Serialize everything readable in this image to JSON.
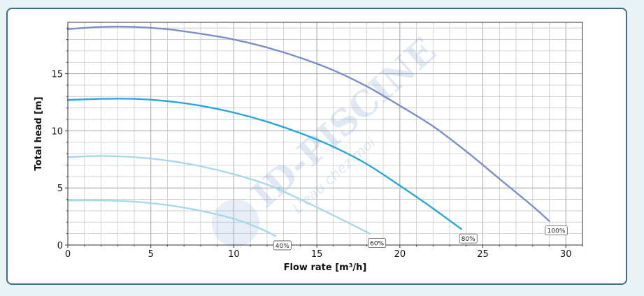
{
  "chart_data": {
    "type": "line",
    "title": "",
    "xlabel": "Flow rate [m³/h]",
    "ylabel": "Total head [m]",
    "xlim": [
      0,
      31
    ],
    "ylim": [
      0,
      19.5
    ],
    "xticks": [
      0,
      5,
      10,
      15,
      20,
      25,
      30
    ],
    "yticks": [
      0,
      5,
      10,
      15
    ],
    "grid": true,
    "series": [
      {
        "name": "100%",
        "color": "#7a8fc8",
        "x": [
          0,
          2,
          4,
          6,
          8,
          10,
          12,
          14,
          16,
          18,
          20,
          22,
          24,
          26,
          28,
          29
        ],
        "y": [
          18.9,
          19.1,
          19.1,
          18.9,
          18.5,
          18.0,
          17.3,
          16.4,
          15.3,
          13.9,
          12.2,
          10.4,
          8.2,
          5.8,
          3.4,
          2.1
        ]
      },
      {
        "name": "80%",
        "color": "#27a8dc",
        "x": [
          0,
          2,
          4,
          6,
          8,
          10,
          12,
          14,
          16,
          18,
          20,
          22,
          23.7
        ],
        "y": [
          12.7,
          12.8,
          12.8,
          12.6,
          12.2,
          11.6,
          10.8,
          9.8,
          8.6,
          7.1,
          5.2,
          3.2,
          1.4
        ]
      },
      {
        "name": "60%",
        "color": "#a8d8ea",
        "x": [
          0,
          2,
          4,
          6,
          8,
          10,
          12,
          14,
          16,
          18.2
        ],
        "y": [
          7.7,
          7.8,
          7.7,
          7.4,
          6.9,
          6.2,
          5.3,
          4.0,
          2.6,
          1.0
        ]
      },
      {
        "name": "40%",
        "color": "#a8d8ea",
        "x": [
          0,
          2,
          4,
          6,
          8,
          10,
          11.5,
          12.5
        ],
        "y": [
          3.9,
          3.9,
          3.8,
          3.5,
          3.0,
          2.3,
          1.5,
          0.8
        ]
      }
    ],
    "labels": [
      "100%",
      "80%",
      "60%",
      "40%"
    ]
  },
  "watermark": {
    "text": "ID-PISCINE",
    "subtext": "L'eau chez moi"
  }
}
